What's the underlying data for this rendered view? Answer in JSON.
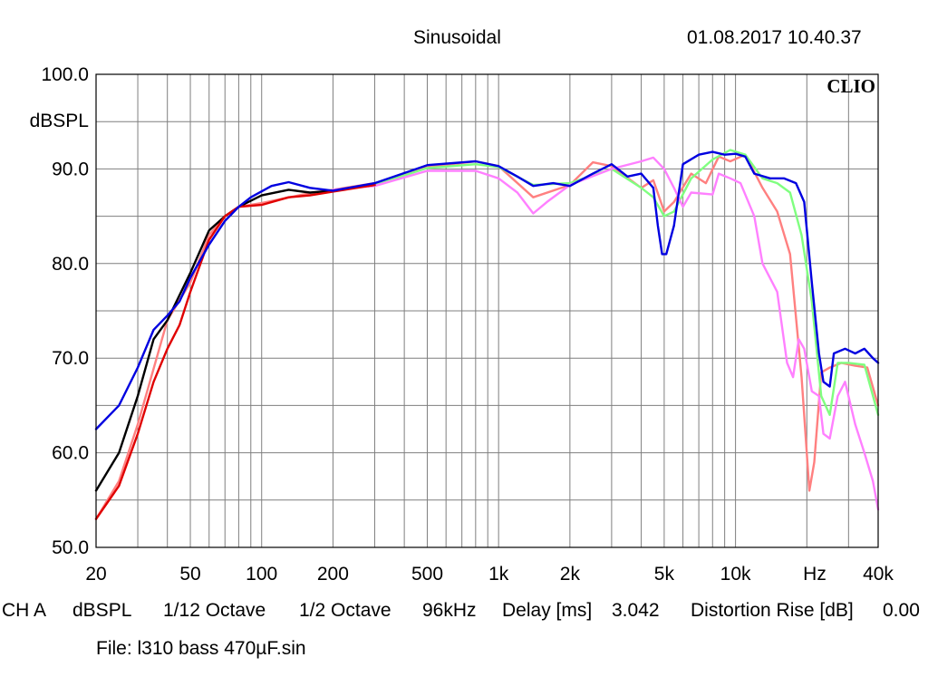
{
  "header": {
    "title": "Sinusoidal",
    "timestamp": "01.08.2017 10.40.37"
  },
  "footer": {
    "channel": "CH A",
    "unit": "dBSPL",
    "smoothing_1": "1/12 Octave",
    "smoothing_2": "1/2 Octave",
    "sample_rate": "96kHz",
    "delay_label": "Delay [ms]",
    "delay_value": "3.042",
    "distortion_label": "Distortion Rise [dB]",
    "distortion_value": "0.00",
    "file": "File: l310 bass 470µF.sin"
  },
  "colors": {
    "grid": "#7f7f7f",
    "frame": "#000000"
  },
  "chart_data": {
    "type": "line",
    "brand": "CLIO",
    "ylabel": "dBSPL",
    "xlabel": "Hz",
    "x_scale": "log",
    "xlim": [
      20,
      40000
    ],
    "ylim": [
      50,
      100
    ],
    "grid": true,
    "y_ticks": [
      {
        "value": 100,
        "label": "100.0"
      },
      {
        "value": 90,
        "label": "90.0"
      },
      {
        "value": 80,
        "label": "80.0"
      },
      {
        "value": 70,
        "label": "70.0"
      },
      {
        "value": 60,
        "label": "60.0"
      },
      {
        "value": 50,
        "label": "50.0"
      }
    ],
    "x_ticks": [
      {
        "value": 20,
        "label": "20"
      },
      {
        "value": 50,
        "label": "50"
      },
      {
        "value": 100,
        "label": "100"
      },
      {
        "value": 200,
        "label": "200"
      },
      {
        "value": 500,
        "label": "500"
      },
      {
        "value": 1000,
        "label": "1k"
      },
      {
        "value": 2000,
        "label": "2k"
      },
      {
        "value": 5000,
        "label": "5k"
      },
      {
        "value": 10000,
        "label": "10k"
      },
      {
        "value": 40000,
        "label": "40k"
      }
    ],
    "series": [
      {
        "color": "#ff8080",
        "points": [
          [
            20,
            53
          ],
          [
            25,
            57
          ],
          [
            30,
            63
          ],
          [
            40,
            74
          ],
          [
            50,
            78
          ],
          [
            60,
            83
          ],
          [
            70,
            85
          ],
          [
            80,
            86
          ],
          [
            100,
            86.4
          ],
          [
            150,
            87.3
          ],
          [
            200,
            87.8
          ],
          [
            300,
            88.5
          ],
          [
            500,
            90.2
          ],
          [
            800,
            90.8
          ],
          [
            1000,
            90.3
          ],
          [
            1400,
            87.0
          ],
          [
            2000,
            88.3
          ],
          [
            2500,
            90.7
          ],
          [
            3000,
            90.3
          ],
          [
            4000,
            88.0
          ],
          [
            4500,
            88.8
          ],
          [
            5000,
            85.5
          ],
          [
            5500,
            86.5
          ],
          [
            6500,
            89.5
          ],
          [
            7500,
            88.5
          ],
          [
            8500,
            91.3
          ],
          [
            9500,
            90.8
          ],
          [
            11000,
            91.5
          ],
          [
            13000,
            88.0
          ],
          [
            15000,
            85.5
          ],
          [
            17000,
            81.0
          ],
          [
            19000,
            68.0
          ],
          [
            20500,
            56.0
          ],
          [
            21500,
            59.0
          ],
          [
            23000,
            68.5
          ],
          [
            25000,
            69.0
          ],
          [
            28000,
            69.5
          ],
          [
            32000,
            69.2
          ],
          [
            36000,
            69.0
          ],
          [
            40000,
            65.0
          ]
        ]
      },
      {
        "color": "#80ff80",
        "points": [
          [
            300,
            88.3
          ],
          [
            500,
            90.1
          ],
          [
            800,
            90.5
          ],
          [
            1000,
            90.2
          ],
          [
            1400,
            88.3
          ],
          [
            2000,
            88.5
          ],
          [
            3000,
            90.0
          ],
          [
            4000,
            88.0
          ],
          [
            4500,
            87.0
          ],
          [
            5000,
            85.0
          ],
          [
            5500,
            85.5
          ],
          [
            6500,
            89.0
          ],
          [
            8000,
            91.0
          ],
          [
            9500,
            92.0
          ],
          [
            11000,
            91.5
          ],
          [
            13000,
            89.0
          ],
          [
            15000,
            88.5
          ],
          [
            17000,
            87.5
          ],
          [
            19000,
            83.0
          ],
          [
            21000,
            76.0
          ],
          [
            23000,
            66.0
          ],
          [
            25000,
            64.0
          ],
          [
            27000,
            69.5
          ],
          [
            30000,
            69.5
          ],
          [
            35000,
            69.3
          ],
          [
            40000,
            64.0
          ]
        ]
      },
      {
        "color": "#ff80ff",
        "points": [
          [
            200,
            87.8
          ],
          [
            300,
            88.2
          ],
          [
            500,
            89.8
          ],
          [
            800,
            89.8
          ],
          [
            1000,
            89.0
          ],
          [
            1200,
            87.5
          ],
          [
            1400,
            85.3
          ],
          [
            1600,
            86.5
          ],
          [
            2000,
            88.3
          ],
          [
            3000,
            90.0
          ],
          [
            4000,
            90.8
          ],
          [
            4500,
            91.2
          ],
          [
            5000,
            90.0
          ],
          [
            5500,
            88.0
          ],
          [
            6000,
            86.0
          ],
          [
            6500,
            87.5
          ],
          [
            8000,
            87.3
          ],
          [
            8500,
            89.5
          ],
          [
            9500,
            89.0
          ],
          [
            10500,
            88.5
          ],
          [
            12000,
            85.0
          ],
          [
            13000,
            80.0
          ],
          [
            15000,
            77.0
          ],
          [
            16500,
            69.5
          ],
          [
            17500,
            68.0
          ],
          [
            18500,
            72.0
          ],
          [
            19500,
            71.0
          ],
          [
            21000,
            66.5
          ],
          [
            22500,
            66.0
          ],
          [
            23500,
            62.0
          ],
          [
            25000,
            61.5
          ],
          [
            27000,
            66.0
          ],
          [
            29000,
            67.5
          ],
          [
            32000,
            63.0
          ],
          [
            35000,
            60.0
          ],
          [
            38000,
            57.0
          ],
          [
            40000,
            54.0
          ]
        ]
      },
      {
        "color": "#000000",
        "points": [
          [
            20,
            56
          ],
          [
            25,
            60
          ],
          [
            30,
            66
          ],
          [
            35,
            72
          ],
          [
            40,
            74
          ],
          [
            50,
            79
          ],
          [
            60,
            83.5
          ],
          [
            70,
            85
          ],
          [
            80,
            86
          ],
          [
            100,
            87.2
          ],
          [
            130,
            87.8
          ],
          [
            160,
            87.5
          ],
          [
            200,
            87.7
          ],
          [
            300,
            88.3
          ]
        ]
      },
      {
        "color": "#e00000",
        "points": [
          [
            20,
            53
          ],
          [
            25,
            56.5
          ],
          [
            30,
            62
          ],
          [
            35,
            67.5
          ],
          [
            40,
            71
          ],
          [
            45,
            73.5
          ],
          [
            50,
            77
          ],
          [
            60,
            82.5
          ],
          [
            70,
            85
          ],
          [
            80,
            86
          ],
          [
            100,
            86.2
          ],
          [
            130,
            87.0
          ],
          [
            160,
            87.2
          ],
          [
            200,
            87.6
          ],
          [
            300,
            88.3
          ]
        ]
      },
      {
        "color": "#0000e0",
        "points": [
          [
            20,
            62.5
          ],
          [
            25,
            65
          ],
          [
            30,
            69
          ],
          [
            35,
            73
          ],
          [
            40,
            74.5
          ],
          [
            45,
            76
          ],
          [
            50,
            78.5
          ],
          [
            60,
            82
          ],
          [
            70,
            84.5
          ],
          [
            80,
            86
          ],
          [
            90,
            87
          ],
          [
            110,
            88.2
          ],
          [
            130,
            88.6
          ],
          [
            160,
            88.0
          ],
          [
            200,
            87.7
          ],
          [
            300,
            88.5
          ],
          [
            500,
            90.4
          ],
          [
            800,
            90.8
          ],
          [
            1000,
            90.3
          ],
          [
            1200,
            89.2
          ],
          [
            1400,
            88.2
          ],
          [
            1700,
            88.5
          ],
          [
            2000,
            88.2
          ],
          [
            2500,
            89.5
          ],
          [
            3000,
            90.5
          ],
          [
            3500,
            89.2
          ],
          [
            4000,
            89.5
          ],
          [
            4500,
            88.0
          ],
          [
            4700,
            84.0
          ],
          [
            4900,
            81.0
          ],
          [
            5100,
            81.0
          ],
          [
            5500,
            84.0
          ],
          [
            6000,
            90.5
          ],
          [
            7000,
            91.5
          ],
          [
            8000,
            91.8
          ],
          [
            9000,
            91.5
          ],
          [
            10000,
            91.6
          ],
          [
            11000,
            91.3
          ],
          [
            12000,
            89.5
          ],
          [
            14000,
            89.0
          ],
          [
            16000,
            89.0
          ],
          [
            18000,
            88.5
          ],
          [
            19500,
            86.5
          ],
          [
            21000,
            78.0
          ],
          [
            22500,
            70.5
          ],
          [
            23500,
            67.5
          ],
          [
            25000,
            67.0
          ],
          [
            26000,
            70.5
          ],
          [
            29000,
            71.0
          ],
          [
            32000,
            70.5
          ],
          [
            35000,
            71.0
          ],
          [
            38000,
            70.0
          ],
          [
            40000,
            69.5
          ]
        ]
      }
    ]
  }
}
